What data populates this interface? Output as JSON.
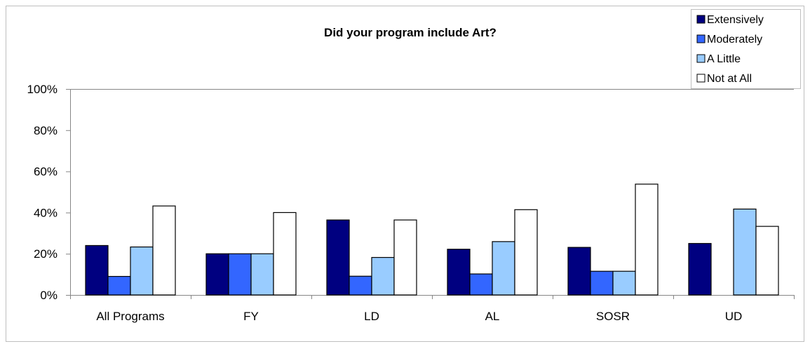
{
  "chart_data": {
    "type": "bar",
    "title": "Did your program include Art?",
    "categories": [
      "All Programs",
      "FY",
      "LD",
      "AL",
      "SOSR",
      "UD"
    ],
    "series": [
      {
        "name": "Extensively",
        "color": "#000080",
        "values": [
          24,
          20,
          36.4,
          22.2,
          23.1,
          25
        ]
      },
      {
        "name": "Moderately",
        "color": "#3366FF",
        "values": [
          9,
          20,
          9.1,
          10.2,
          11.5,
          0
        ]
      },
      {
        "name": "A Little",
        "color": "#99CCFF",
        "values": [
          23.3,
          20,
          18.2,
          25.9,
          11.5,
          41.7
        ]
      },
      {
        "name": "Not at All",
        "color": "#FFFFFF",
        "values": [
          43.2,
          40,
          36.4,
          41.4,
          53.8,
          33.3
        ]
      }
    ],
    "ylim": [
      0,
      100
    ],
    "yticks": [
      "0%",
      "20%",
      "40%",
      "60%",
      "80%",
      "100%"
    ],
    "legend_position": "top-right",
    "grid": false
  }
}
